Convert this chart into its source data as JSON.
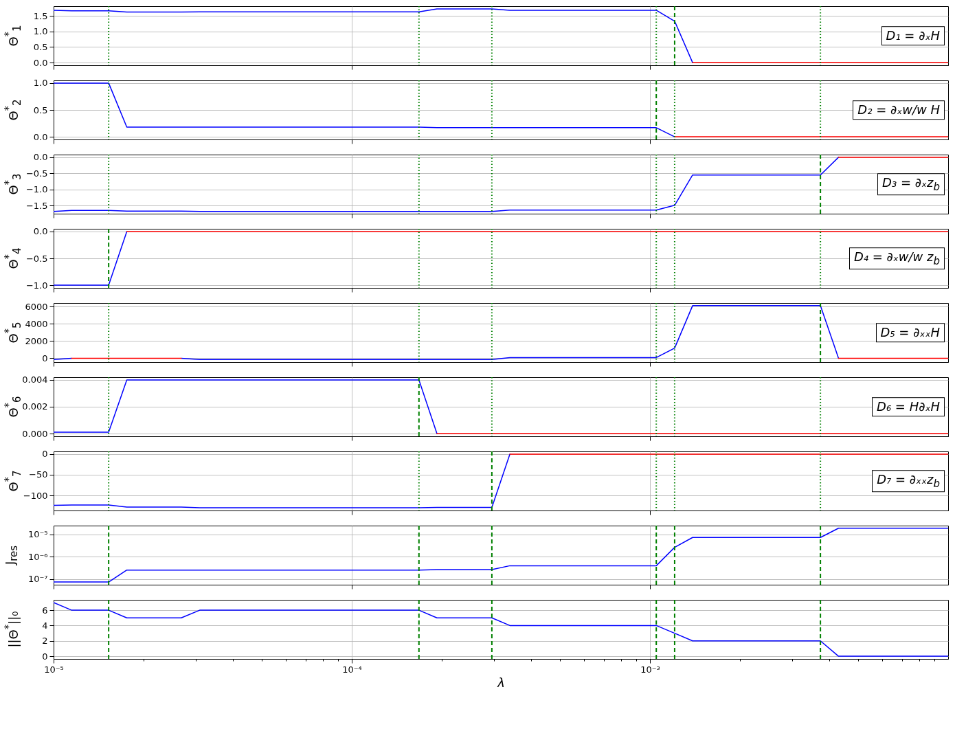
{
  "chart_data": [
    {
      "type": "line",
      "ylabel": "Θ$^{*}$$_{1}$",
      "annotations": [
        "D₁ = ∂ₓH"
      ],
      "log": "x",
      "grid": true,
      "tick_labels": "y",
      "xlim": [
        1e-05,
        0.01
      ],
      "xticks": [
        1e-05,
        0.0001,
        0.001
      ],
      "ylim": [
        -0.086,
        1.81
      ],
      "yticks": [
        {
          "value": 0,
          "label": "0.0"
        },
        0.5,
        {
          "value": 1,
          "label": "1.0"
        },
        1.5
      ],
      "series": [
        {
          "color": "#0000ff",
          "x": [
            1e-05,
            1.15e-05,
            1.53e-05,
            1.76e-05,
            2.68e-05,
            3.09e-05,
            0.000168,
            0.000193,
            0.000295,
            0.000339,
            0.00105,
            0.00121,
            0.00139
          ],
          "values": [
            1.68,
            1.66,
            1.66,
            1.62,
            1.62,
            1.63,
            1.63,
            1.72,
            1.72,
            1.68,
            1.68,
            1.33,
            0
          ]
        },
        {
          "color": "#ff0000",
          "x": [
            0.00139,
            0.01
          ],
          "values": [
            0,
            0
          ]
        }
      ],
      "ref_lines": [
        {
          "axis": "x",
          "value": 1.53e-05,
          "color": "#008000",
          "line_style": "dotted"
        },
        {
          "axis": "x",
          "value": 0.000168,
          "color": "#008000",
          "line_style": "dotted"
        },
        {
          "axis": "x",
          "value": 0.000295,
          "color": "#008000",
          "line_style": "dotted"
        },
        {
          "axis": "x",
          "value": 0.00105,
          "color": "#008000",
          "line_style": "dotted"
        },
        {
          "axis": "x",
          "value": 0.00121,
          "color": "#008000",
          "line_style": "dashed"
        },
        {
          "axis": "x",
          "value": 0.00373,
          "color": "#008000",
          "line_style": "dotted"
        }
      ]
    },
    {
      "type": "line",
      "ylabel": "Θ$^{*}$$_{2}$",
      "annotations": [
        "D₂ = ∂ₓw/w H"
      ],
      "log": "x",
      "grid": true,
      "tick_labels": "y",
      "xlim": [
        1e-05,
        0.01
      ],
      "xticks": [
        1e-05,
        0.0001,
        0.001
      ],
      "ylim": [
        -0.05,
        1.05
      ],
      "yticks": [
        {
          "value": 0,
          "label": "0.0"
        },
        0.5,
        {
          "value": 1,
          "label": "1.0"
        }
      ],
      "series": [
        {
          "color": "#0000ff",
          "x": [
            1e-05,
            1.53e-05,
            1.76e-05,
            0.000168,
            0.000193,
            0.00105,
            0.00121
          ],
          "values": [
            1,
            1,
            0.18,
            0.18,
            0.17,
            0.17,
            0
          ]
        },
        {
          "color": "#ff0000",
          "x": [
            0.00121,
            0.01
          ],
          "values": [
            0,
            0
          ]
        }
      ],
      "ref_lines": [
        {
          "axis": "x",
          "value": 1.53e-05,
          "color": "#008000",
          "line_style": "dotted"
        },
        {
          "axis": "x",
          "value": 0.000168,
          "color": "#008000",
          "line_style": "dotted"
        },
        {
          "axis": "x",
          "value": 0.000295,
          "color": "#008000",
          "line_style": "dotted"
        },
        {
          "axis": "x",
          "value": 0.00105,
          "color": "#008000",
          "line_style": "dashed"
        },
        {
          "axis": "x",
          "value": 0.00121,
          "color": "#008000",
          "line_style": "dotted"
        },
        {
          "axis": "x",
          "value": 0.00373,
          "color": "#008000",
          "line_style": "dotted"
        }
      ]
    },
    {
      "type": "line",
      "ylabel": "Θ$^{*}$$_{3}$",
      "annotations": [
        "D₃ = ∂ₓz$_{b}$"
      ],
      "log": "x",
      "grid": true,
      "tick_labels": "y",
      "xlim": [
        1e-05,
        0.01
      ],
      "xticks": [
        1e-05,
        0.0001,
        0.001
      ],
      "ylim": [
        -1.75,
        0.083
      ],
      "yticks": [
        {
          "value": 0,
          "label": "0.0"
        },
        {
          "value": -0.5,
          "label": "−0.5"
        },
        {
          "value": -1,
          "label": "−1.0"
        },
        {
          "value": -1.5,
          "label": "−1.5"
        }
      ],
      "series": [
        {
          "color": "#0000ff",
          "x": [
            1e-05,
            1.15e-05,
            1.53e-05,
            1.76e-05,
            2.68e-05,
            3.09e-05,
            0.000295,
            0.000339,
            0.00105,
            0.00121,
            0.00139,
            0.00373,
            0.00429
          ],
          "values": [
            -1.68,
            -1.65,
            -1.65,
            -1.67,
            -1.67,
            -1.68,
            -1.68,
            -1.64,
            -1.64,
            -1.49,
            -0.55,
            -0.55,
            0
          ]
        },
        {
          "color": "#ff0000",
          "x": [
            0.00429,
            0.01
          ],
          "values": [
            0,
            0
          ]
        }
      ],
      "ref_lines": [
        {
          "axis": "x",
          "value": 1.53e-05,
          "color": "#008000",
          "line_style": "dotted"
        },
        {
          "axis": "x",
          "value": 0.000168,
          "color": "#008000",
          "line_style": "dotted"
        },
        {
          "axis": "x",
          "value": 0.000295,
          "color": "#008000",
          "line_style": "dotted"
        },
        {
          "axis": "x",
          "value": 0.00105,
          "color": "#008000",
          "line_style": "dotted"
        },
        {
          "axis": "x",
          "value": 0.00121,
          "color": "#008000",
          "line_style": "dotted"
        },
        {
          "axis": "x",
          "value": 0.00373,
          "color": "#008000",
          "line_style": "dashed"
        }
      ]
    },
    {
      "type": "line",
      "ylabel": "Θ$^{*}$$_{4}$",
      "annotations": [
        "D₄ = ∂ₓw/w z$_{b}$"
      ],
      "log": "x",
      "grid": true,
      "tick_labels": "y",
      "xlim": [
        1e-05,
        0.01
      ],
      "xticks": [
        1e-05,
        0.0001,
        0.001
      ],
      "ylim": [
        -1.05,
        0.05
      ],
      "yticks": [
        {
          "value": 0,
          "label": "0.0"
        },
        {
          "value": -0.5,
          "label": "−0.5"
        },
        {
          "value": -1,
          "label": "−1.0"
        }
      ],
      "series": [
        {
          "color": "#0000ff",
          "x": [
            1e-05,
            1.53e-05,
            1.76e-05
          ],
          "values": [
            -1,
            -1,
            0
          ]
        },
        {
          "color": "#ff0000",
          "x": [
            1.76e-05,
            0.01
          ],
          "values": [
            0,
            0
          ]
        }
      ],
      "ref_lines": [
        {
          "axis": "x",
          "value": 1.53e-05,
          "color": "#008000",
          "line_style": "dashed"
        },
        {
          "axis": "x",
          "value": 0.000168,
          "color": "#008000",
          "line_style": "dotted"
        },
        {
          "axis": "x",
          "value": 0.000295,
          "color": "#008000",
          "line_style": "dotted"
        },
        {
          "axis": "x",
          "value": 0.00105,
          "color": "#008000",
          "line_style": "dotted"
        },
        {
          "axis": "x",
          "value": 0.00121,
          "color": "#008000",
          "line_style": "dotted"
        },
        {
          "axis": "x",
          "value": 0.00373,
          "color": "#008000",
          "line_style": "dotted"
        }
      ]
    },
    {
      "type": "line",
      "ylabel": "Θ$^{*}$$_{5}$",
      "annotations": [
        "D₅ = ∂ₓₓH"
      ],
      "log": "x",
      "grid": true,
      "tick_labels": "y",
      "xlim": [
        1e-05,
        0.01
      ],
      "xticks": [
        1e-05,
        0.0001,
        0.001
      ],
      "ylim": [
        -450,
        6440
      ],
      "yticks": [
        0,
        2000,
        4000,
        6000
      ],
      "series": [
        {
          "color": "#0000ff",
          "x": [
            1e-05,
            1.15e-05,
            1.53e-05,
            2.68e-05,
            3.09e-05,
            0.000295,
            0.000339,
            0.00105,
            0.00121,
            0.00139,
            0.00373,
            0.00429
          ],
          "values": [
            -140,
            0,
            null,
            0,
            -140,
            -140,
            80,
            80,
            1180,
            6130,
            6130,
            0
          ]
        },
        {
          "color": "#ff0000",
          "x": [
            1.15e-05,
            2.68e-05,
            3.09e-05,
            0.00429,
            0.01
          ],
          "values": [
            0,
            0,
            null,
            0,
            0
          ]
        }
      ],
      "ref_lines": [
        {
          "axis": "x",
          "value": 1.53e-05,
          "color": "#008000",
          "line_style": "dotted"
        },
        {
          "axis": "x",
          "value": 0.000168,
          "color": "#008000",
          "line_style": "dotted"
        },
        {
          "axis": "x",
          "value": 0.000295,
          "color": "#008000",
          "line_style": "dotted"
        },
        {
          "axis": "x",
          "value": 0.00105,
          "color": "#008000",
          "line_style": "dotted"
        },
        {
          "axis": "x",
          "value": 0.00121,
          "color": "#008000",
          "line_style": "dotted"
        },
        {
          "axis": "x",
          "value": 0.00373,
          "color": "#008000",
          "line_style": "dashed"
        }
      ]
    },
    {
      "type": "line",
      "ylabel": "Θ$^{*}$$_{6}$",
      "annotations": [
        "D₆ = H∂ₓH"
      ],
      "log": "x",
      "grid": true,
      "tick_labels": "y",
      "xlim": [
        1e-05,
        0.01
      ],
      "xticks": [
        1e-05,
        0.0001,
        0.001
      ],
      "ylim": [
        -0.0002,
        0.00418
      ],
      "yticks": [
        {
          "value": 0,
          "label": "0.000"
        },
        0.002,
        0.004
      ],
      "series": [
        {
          "color": "#0000ff",
          "x": [
            1e-05,
            1.53e-05,
            1.76e-05,
            0.000168,
            0.000193
          ],
          "values": [
            0.0001,
            0.0001,
            0.00398,
            0.00398,
            0
          ]
        },
        {
          "color": "#ff0000",
          "x": [
            0.000193,
            0.01
          ],
          "values": [
            0,
            0
          ]
        }
      ],
      "ref_lines": [
        {
          "axis": "x",
          "value": 1.53e-05,
          "color": "#008000",
          "line_style": "dotted"
        },
        {
          "axis": "x",
          "value": 0.000168,
          "color": "#008000",
          "line_style": "dashed"
        },
        {
          "axis": "x",
          "value": 0.000295,
          "color": "#008000",
          "line_style": "dotted"
        },
        {
          "axis": "x",
          "value": 0.00105,
          "color": "#008000",
          "line_style": "dotted"
        },
        {
          "axis": "x",
          "value": 0.00121,
          "color": "#008000",
          "line_style": "dotted"
        },
        {
          "axis": "x",
          "value": 0.00373,
          "color": "#008000",
          "line_style": "dotted"
        }
      ]
    },
    {
      "type": "line",
      "ylabel": "Θ$^{*}$$_{7}$",
      "annotations": [
        "D₇ = ∂ₓₓz$_{b}$"
      ],
      "log": "x",
      "grid": true,
      "tick_labels": "y",
      "xlim": [
        1e-05,
        0.01
      ],
      "xticks": [
        1e-05,
        0.0001,
        0.001
      ],
      "ylim": [
        -136.5,
        6.5
      ],
      "yticks": [
        0,
        {
          "value": -50,
          "label": "−50"
        },
        {
          "value": -100,
          "label": "−100"
        }
      ],
      "series": [
        {
          "color": "#0000ff",
          "x": [
            1e-05,
            1.15e-05,
            1.53e-05,
            1.76e-05,
            2.68e-05,
            3.09e-05,
            0.000168,
            0.000193,
            0.000295,
            0.000339
          ],
          "values": [
            -124,
            -123,
            -123,
            -128,
            -128,
            -130,
            -130,
            -129,
            -129,
            0
          ]
        },
        {
          "color": "#ff0000",
          "x": [
            0.000339,
            0.01
          ],
          "values": [
            0,
            0
          ]
        }
      ],
      "ref_lines": [
        {
          "axis": "x",
          "value": 1.53e-05,
          "color": "#008000",
          "line_style": "dotted"
        },
        {
          "axis": "x",
          "value": 0.000168,
          "color": "#008000",
          "line_style": "dotted"
        },
        {
          "axis": "x",
          "value": 0.000295,
          "color": "#008000",
          "line_style": "dashed"
        },
        {
          "axis": "x",
          "value": 0.00105,
          "color": "#008000",
          "line_style": "dotted"
        },
        {
          "axis": "x",
          "value": 0.00121,
          "color": "#008000",
          "line_style": "dotted"
        },
        {
          "axis": "x",
          "value": 0.00373,
          "color": "#008000",
          "line_style": "dotted"
        }
      ]
    },
    {
      "type": "line",
      "ylabel": "J$_{res}$",
      "log": "xy",
      "grid": true,
      "tick_labels": "y",
      "xlim": [
        1e-05,
        0.01
      ],
      "xticks": [
        1e-05,
        0.0001,
        0.001
      ],
      "ylim": [
        5.5e-08,
        2.45e-05
      ],
      "yticks": [
        {
          "value": 1e-07,
          "label": "10⁻⁷"
        },
        {
          "value": 1e-06,
          "label": "10⁻⁶"
        },
        {
          "value": 1e-05,
          "label": "10⁻⁵"
        }
      ],
      "series": [
        {
          "color": "#0000ff",
          "x": [
            1e-05,
            1.53e-05,
            1.76e-05,
            0.000168,
            0.000193,
            0.000295,
            0.000339,
            0.00105,
            0.00121,
            0.00139,
            0.00373,
            0.00429,
            0.01
          ],
          "values": [
            7.3e-08,
            7.3e-08,
            2.5e-07,
            2.5e-07,
            2.6e-07,
            2.6e-07,
            3.9e-07,
            3.9e-07,
            2.6e-06,
            7.2e-06,
            7.2e-06,
            1.88e-05,
            1.88e-05
          ]
        }
      ],
      "ref_lines": [
        {
          "axis": "x",
          "value": 1.53e-05,
          "color": "#008000",
          "line_style": "dashed"
        },
        {
          "axis": "x",
          "value": 0.000168,
          "color": "#008000",
          "line_style": "dashed"
        },
        {
          "axis": "x",
          "value": 0.000295,
          "color": "#008000",
          "line_style": "dashed"
        },
        {
          "axis": "x",
          "value": 0.00105,
          "color": "#008000",
          "line_style": "dashed"
        },
        {
          "axis": "x",
          "value": 0.00121,
          "color": "#008000",
          "line_style": "dashed"
        },
        {
          "axis": "x",
          "value": 0.00373,
          "color": "#008000",
          "line_style": "dashed"
        }
      ]
    },
    {
      "type": "line",
      "ylabel": "||Θ$^{*}$||₀",
      "xlabel": "λ",
      "log": "x",
      "grid": true,
      "xlim": [
        1e-05,
        0.01
      ],
      "xticks": [
        {
          "value": 1e-05,
          "label": "10⁻⁵"
        },
        {
          "value": 2e-05,
          "label": null
        },
        {
          "value": 3e-05,
          "label": null
        },
        {
          "value": 4e-05,
          "label": null
        },
        {
          "value": 5e-05,
          "label": null
        },
        {
          "value": 6e-05,
          "label": null
        },
        {
          "value": 7e-05,
          "label": null
        },
        {
          "value": 8e-05,
          "label": null
        },
        {
          "value": 9e-05,
          "label": null
        },
        {
          "value": 0.0001,
          "label": "10⁻⁴"
        },
        {
          "value": 0.0002,
          "label": null
        },
        {
          "value": 0.0003,
          "label": null
        },
        {
          "value": 0.0004,
          "label": null
        },
        {
          "value": 0.0005,
          "label": null
        },
        {
          "value": 0.0006,
          "label": null
        },
        {
          "value": 0.0007,
          "label": null
        },
        {
          "value": 0.0008,
          "label": null
        },
        {
          "value": 0.0009,
          "label": null
        },
        {
          "value": 0.001,
          "label": "10⁻³"
        },
        {
          "value": 0.002,
          "label": null
        },
        {
          "value": 0.003,
          "label": null
        },
        {
          "value": 0.004,
          "label": null
        },
        {
          "value": 0.005,
          "label": null
        },
        {
          "value": 0.006,
          "label": null
        },
        {
          "value": 0.007,
          "label": null
        },
        {
          "value": 0.008,
          "label": null
        },
        {
          "value": 0.009,
          "label": null
        }
      ],
      "ylim": [
        -0.35,
        7.35
      ],
      "yticks": [
        0,
        2,
        4,
        6
      ],
      "series": [
        {
          "color": "#0000ff",
          "x": [
            1e-05,
            1.15e-05,
            1.53e-05,
            1.76e-05,
            2.68e-05,
            3.09e-05,
            0.000168,
            0.000193,
            0.000295,
            0.000339,
            0.00105,
            0.00121,
            0.00139,
            0.00373,
            0.00429,
            0.01
          ],
          "values": [
            7,
            6,
            6,
            5,
            5,
            6,
            6,
            5,
            5,
            4,
            4,
            3,
            2,
            2,
            0,
            0
          ]
        }
      ],
      "ref_lines": [
        {
          "axis": "x",
          "value": 1.53e-05,
          "color": "#008000",
          "line_style": "dashed"
        },
        {
          "axis": "x",
          "value": 0.000168,
          "color": "#008000",
          "line_style": "dashed"
        },
        {
          "axis": "x",
          "value": 0.000295,
          "color": "#008000",
          "line_style": "dashed"
        },
        {
          "axis": "x",
          "value": 0.00105,
          "color": "#008000",
          "line_style": "dashed"
        },
        {
          "axis": "x",
          "value": 0.00121,
          "color": "#008000",
          "line_style": "dashed"
        },
        {
          "axis": "x",
          "value": 0.00373,
          "color": "#008000",
          "line_style": "dashed"
        }
      ]
    }
  ]
}
